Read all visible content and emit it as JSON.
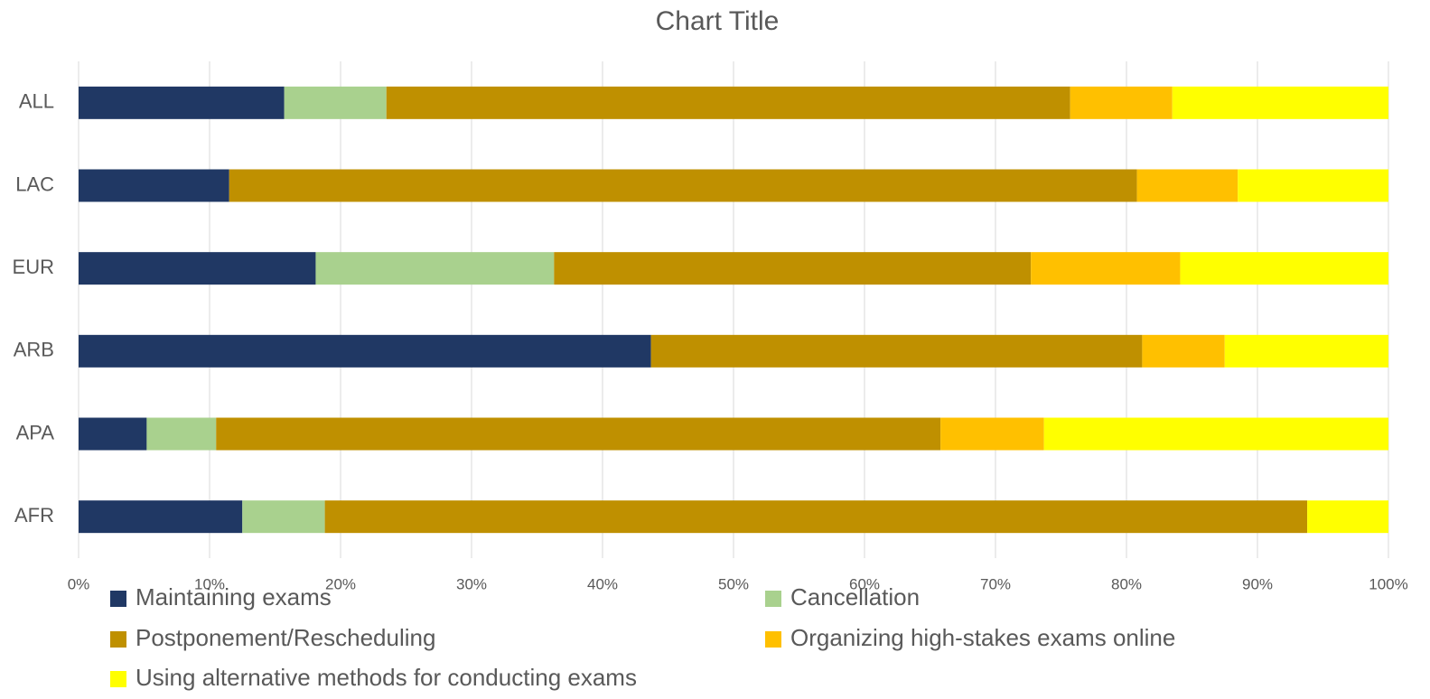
{
  "chart_data": {
    "type": "stacked_bar_horizontal",
    "title": "Chart Title",
    "categories": [
      "ALL",
      "LAC",
      "EUR",
      "ARB",
      "APA",
      "AFR"
    ],
    "series": [
      {
        "name": "Maintaining exams",
        "color": "#203864",
        "values": [
          15.7,
          11.5,
          18.1,
          43.7,
          5.2,
          12.5
        ]
      },
      {
        "name": "Cancellation",
        "color": "#a9d18e",
        "values": [
          7.8,
          0,
          18.2,
          0,
          5.3,
          6.3
        ]
      },
      {
        "name": "Postponement/Rescheduling",
        "color": "#bf9000",
        "values": [
          52.2,
          69.3,
          36.4,
          37.5,
          55.3,
          75
        ]
      },
      {
        "name": "Organizing high-stakes exams online",
        "color": "#ffc000",
        "values": [
          7.8,
          7.7,
          11.4,
          6.3,
          7.9,
          0
        ]
      },
      {
        "name": "Using alternative methods for conducting exams",
        "color": "#ffff00",
        "values": [
          16.5,
          11.5,
          15.9,
          12.5,
          26.3,
          6.2
        ]
      }
    ],
    "xlim": [
      0,
      100
    ],
    "xticks": [
      {
        "value": 0,
        "label": "0%"
      },
      {
        "value": 10,
        "label": "10%"
      },
      {
        "value": 20,
        "label": "20%"
      },
      {
        "value": 30,
        "label": "30%"
      },
      {
        "value": 40,
        "label": "40%"
      },
      {
        "value": 50,
        "label": "50%"
      },
      {
        "value": 60,
        "label": "60%"
      },
      {
        "value": 70,
        "label": "70%"
      },
      {
        "value": 80,
        "label": "80%"
      },
      {
        "value": 90,
        "label": "90%"
      },
      {
        "value": 100,
        "label": "100%"
      }
    ],
    "grid": true,
    "legend": "bottom"
  }
}
